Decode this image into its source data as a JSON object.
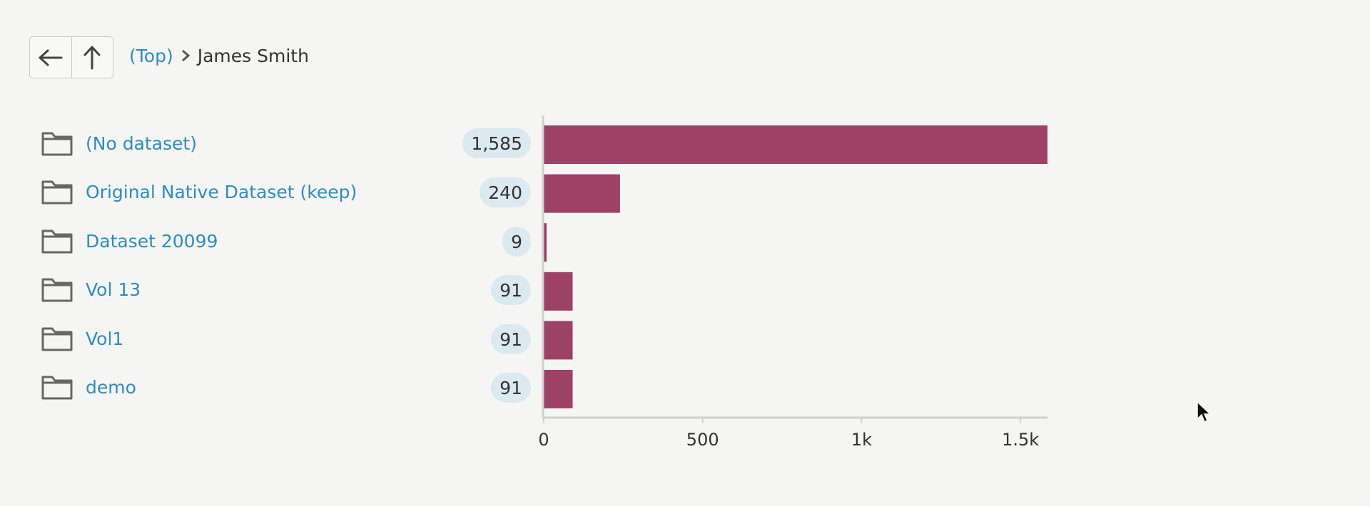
{
  "breadcrumb": {
    "root_label": "(Top)",
    "current_label": "James Smith"
  },
  "icons": {
    "back": "arrow-left-icon",
    "up": "arrow-up-icon",
    "separator": "chevron-right-icon",
    "item": "folder-icon",
    "pointer": "mouse-cursor-icon"
  },
  "items": [
    {
      "label": "(No dataset)",
      "count_label": "1,585"
    },
    {
      "label": "Original Native Dataset (keep)",
      "count_label": "240"
    },
    {
      "label": "Dataset 20099",
      "count_label": "9"
    },
    {
      "label": "Vol 13",
      "count_label": "91"
    },
    {
      "label": "Vol1",
      "count_label": "91"
    },
    {
      "label": "demo",
      "count_label": "91"
    }
  ],
  "chart_data": {
    "type": "bar",
    "orientation": "horizontal",
    "categories": [
      "(No dataset)",
      "Original Native Dataset (keep)",
      "Dataset 20099",
      "Vol 13",
      "Vol1",
      "demo"
    ],
    "values": [
      1585,
      240,
      9,
      91,
      91,
      91
    ],
    "xlim": [
      0,
      1585
    ],
    "xticks": [
      0,
      500,
      1000,
      1500
    ],
    "xtick_labels": [
      "0",
      "500",
      "1k",
      "1.5k"
    ],
    "grid": false,
    "legend": "none",
    "bar_color": "#9e4166",
    "axis_color": "#d0d0d0"
  },
  "colors": {
    "link": "#2f8dbb",
    "badge_bg": "#dbe9f1",
    "background": "#f5f5f3"
  }
}
